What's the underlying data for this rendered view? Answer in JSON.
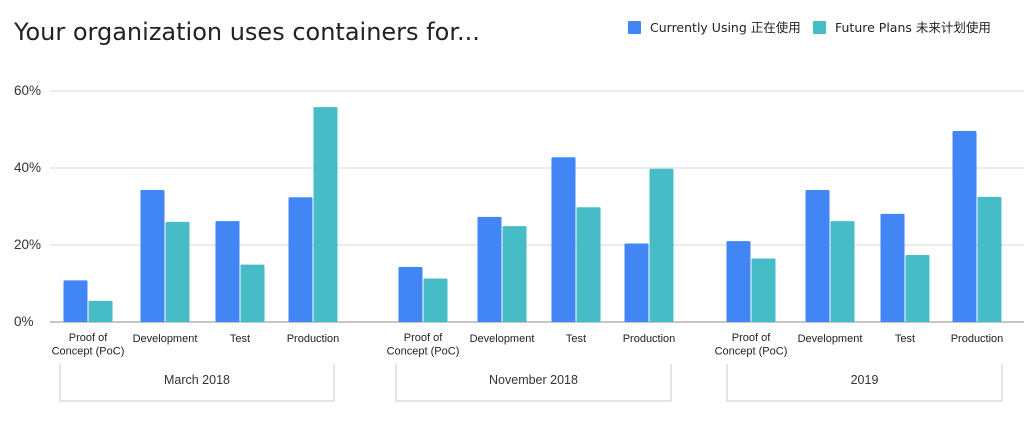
{
  "chart_data": {
    "type": "bar",
    "title": "Your organization uses containers for...",
    "xlabel": "",
    "ylabel": "",
    "ylim": [
      0,
      60
    ],
    "yticks": [
      "0%",
      "20%",
      "40%",
      "60%"
    ],
    "grid": true,
    "legend_position": "top-right",
    "groups": [
      {
        "label": "March 2018",
        "categories": [
          [
            "Proof of",
            "Concept (PoC)"
          ],
          [
            "Development"
          ],
          [
            "Test"
          ],
          [
            "Production"
          ]
        ],
        "series": [
          {
            "name": "Currently Using 正在使用",
            "values": [
              10.8,
              34.3,
              26.2,
              32.4
            ]
          },
          {
            "name": "Future Plans 未来计划使用",
            "values": [
              5.5,
              26.0,
              14.9,
              55.8
            ]
          }
        ]
      },
      {
        "label": "November 2018",
        "categories": [
          [
            "Proof of",
            "Concept (PoC)"
          ],
          [
            "Development"
          ],
          [
            "Test"
          ],
          [
            "Production"
          ]
        ],
        "series": [
          {
            "name": "Currently Using 正在使用",
            "values": [
              14.3,
              27.3,
              42.8,
              20.4
            ]
          },
          {
            "name": "Future Plans 未来计划使用",
            "values": [
              11.3,
              24.9,
              29.8,
              39.8
            ]
          }
        ]
      },
      {
        "label": "2019",
        "categories": [
          [
            "Proof of",
            "Concept (PoC)"
          ],
          [
            "Development"
          ],
          [
            "Test"
          ],
          [
            "Production"
          ]
        ],
        "series": [
          {
            "name": "Currently Using 正在使用",
            "values": [
              21.0,
              34.3,
              28.1,
              49.6
            ]
          },
          {
            "name": "Future Plans 未来计划使用",
            "values": [
              16.5,
              26.2,
              17.4,
              32.5
            ]
          }
        ]
      }
    ],
    "legend": [
      {
        "name": "Currently Using 正在使用",
        "color": "#4285f4"
      },
      {
        "name": "Future Plans 未来计划使用",
        "color": "#46bdc6"
      }
    ],
    "colors": {
      "current": "#4285f4",
      "future": "#46bdc6",
      "grid": "#d9d9d9",
      "baseline": "#8c8c8c"
    }
  }
}
